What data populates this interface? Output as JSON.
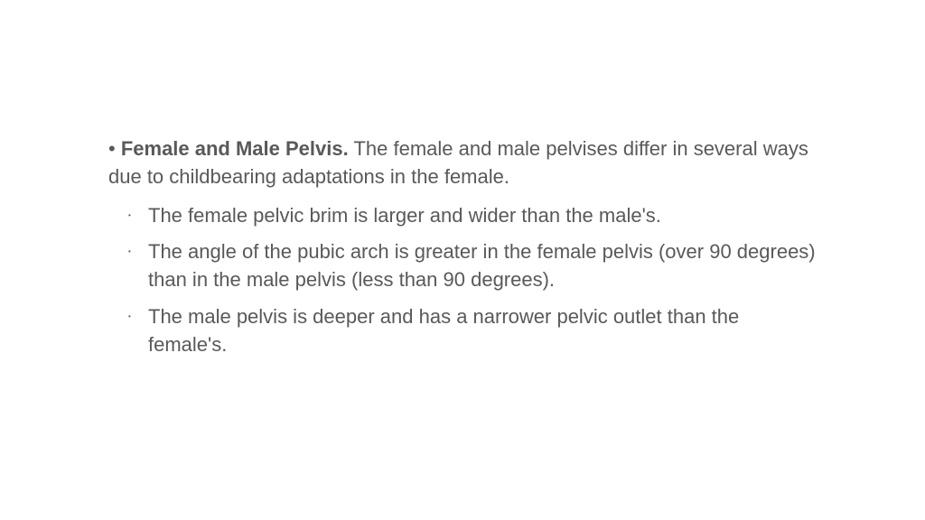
{
  "slide": {
    "text_color": "#595959",
    "background_color": "#ffffff",
    "main_bullet": {
      "marker": "•",
      "heading": "Female and Male Pelvis.",
      "body": "The female and male pelvises differ in several ways due to childbearing adaptations in the female."
    },
    "sub_bullets": [
      "The female pelvic brim is larger and wider than the male's.",
      "The angle of the pubic arch is greater in the female pelvis (over 90 degrees) than in the male pelvis (less than 90 degrees).",
      "The male pelvis is deeper and has a narrower pelvic outlet than the female's."
    ],
    "typography": {
      "main_fontsize": 22,
      "sub_fontsize": 22,
      "heading_weight": "bold",
      "body_weight": "normal"
    }
  }
}
